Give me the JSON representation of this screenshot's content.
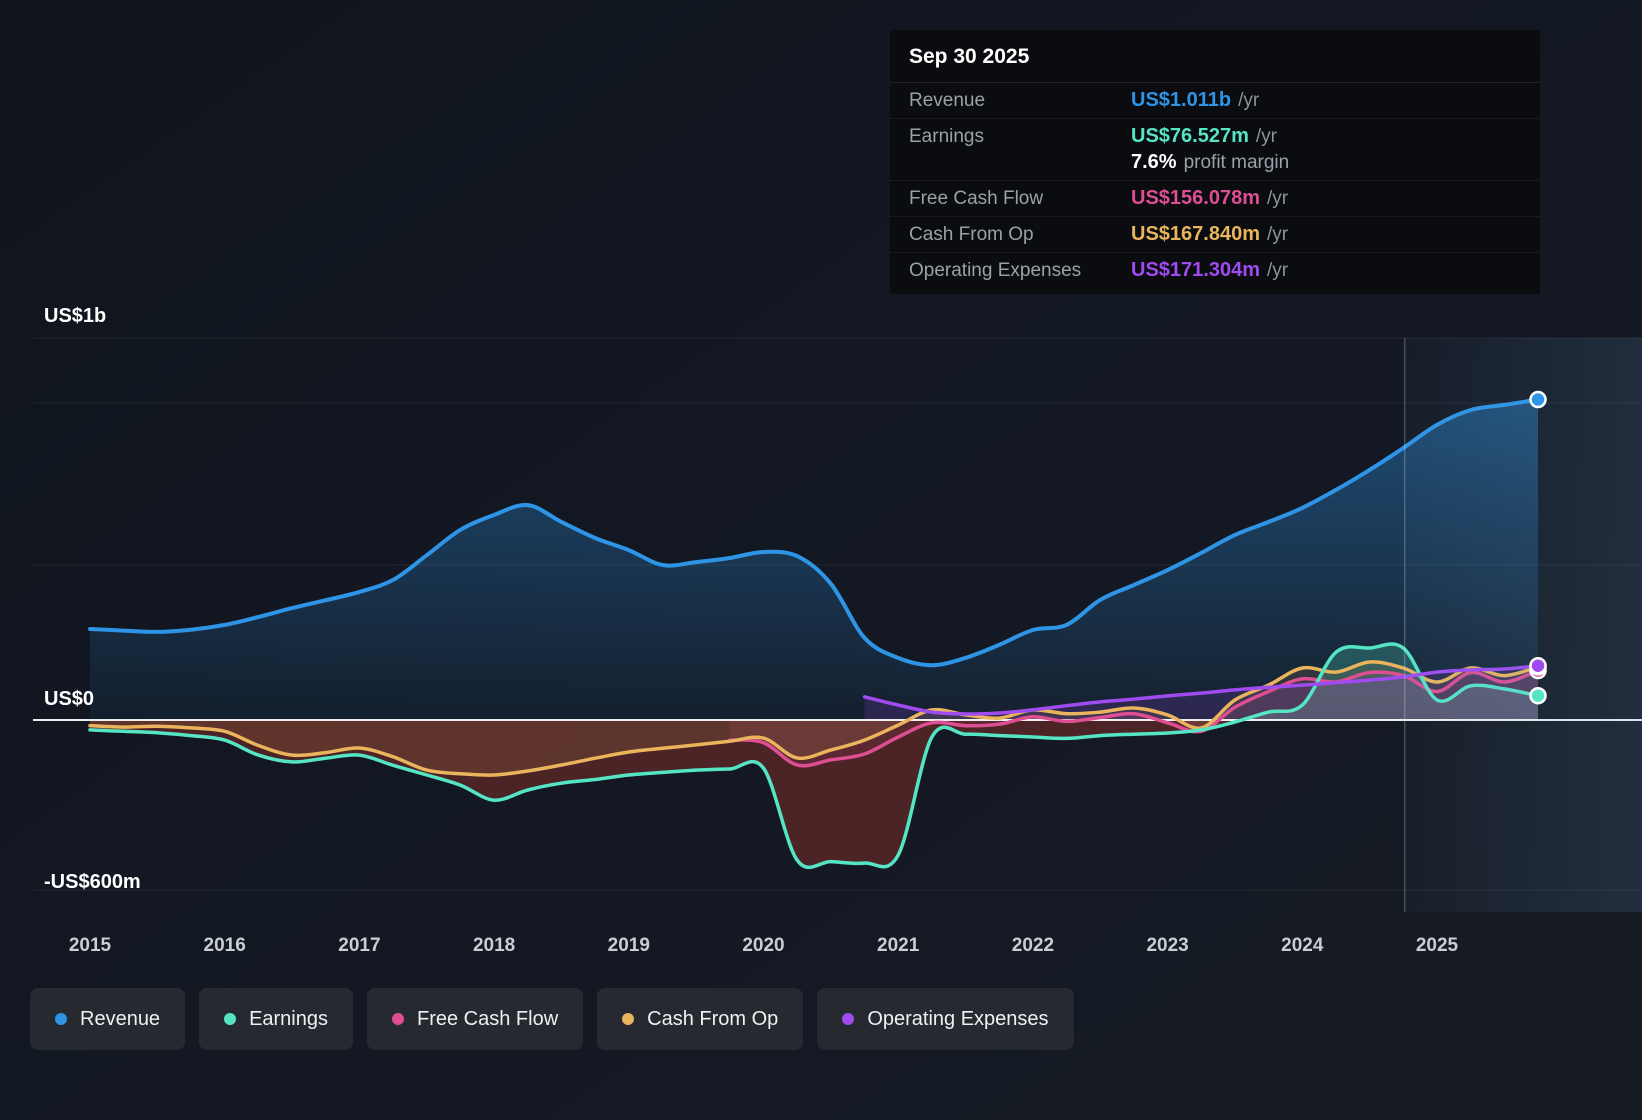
{
  "tooltip": {
    "date": "Sep 30 2025",
    "rows": [
      {
        "label": "Revenue",
        "value": "US$1.011b",
        "suffix": "/yr",
        "color": "#2e94e5"
      },
      {
        "label": "Earnings",
        "value": "US$76.527m",
        "suffix": "/yr",
        "color": "#55e5c5",
        "margin_value": "7.6%",
        "margin_text": "profit margin"
      },
      {
        "label": "Free Cash Flow",
        "value": "US$156.078m",
        "suffix": "/yr",
        "color": "#dd4f92"
      },
      {
        "label": "Cash From Op",
        "value": "US$167.840m",
        "suffix": "/yr",
        "color": "#e9b45c"
      },
      {
        "label": "Operating Expenses",
        "value": "US$171.304m",
        "suffix": "/yr",
        "color": "#9f4bf0"
      }
    ]
  },
  "axis": {
    "y_labels": [
      "US$1b",
      "US$0",
      "-US$600m"
    ],
    "x_ticks": [
      "2015",
      "2016",
      "2017",
      "2018",
      "2019",
      "2020",
      "2021",
      "2022",
      "2023",
      "2024",
      "2025"
    ]
  },
  "legend": [
    {
      "label": "Revenue",
      "color": "#2e94e5"
    },
    {
      "label": "Earnings",
      "color": "#55e5c5"
    },
    {
      "label": "Free Cash Flow",
      "color": "#dd4f92"
    },
    {
      "label": "Cash From Op",
      "color": "#e9b45c"
    },
    {
      "label": "Operating Expenses",
      "color": "#9f4bf0"
    }
  ],
  "chart_data": {
    "type": "line",
    "y_unit": "US$ millions",
    "ylim": [
      -600,
      1200
    ],
    "grid": "on",
    "legend_position": "bottom",
    "highlight_start_x": 2024.76,
    "x": [
      2015,
      2015.25,
      2015.5,
      2015.75,
      2016,
      2016.25,
      2016.5,
      2016.75,
      2017,
      2017.25,
      2017.5,
      2017.75,
      2018,
      2018.25,
      2018.5,
      2018.75,
      2019,
      2019.25,
      2019.5,
      2019.75,
      2020,
      2020.25,
      2020.5,
      2020.75,
      2021,
      2021.25,
      2021.5,
      2021.75,
      2022,
      2022.25,
      2022.5,
      2022.75,
      2023,
      2023.25,
      2023.5,
      2023.75,
      2024,
      2024.25,
      2024.5,
      2024.75,
      2025,
      2025.25,
      2025.5,
      2025.75
    ],
    "series": [
      {
        "name": "Revenue",
        "color": "#2e94e5",
        "values": [
          287,
          282,
          278,
          285,
          300,
          325,
          353,
          378,
          404,
          442,
          520,
          600,
          647,
          678,
          625,
          574,
          536,
          489,
          498,
          511,
          530,
          517,
          430,
          259,
          196,
          173,
          196,
          237,
          284,
          300,
          379,
          426,
          473,
          527,
          584,
          625,
          669,
          726,
          789,
          858,
          931,
          978,
          994,
          1011
        ]
      },
      {
        "name": "Earnings",
        "color": "#55e5c5",
        "values": [
          -35,
          -40,
          -45,
          -55,
          -71,
          -124,
          -148,
          -135,
          -124,
          -160,
          -194,
          -230,
          -283,
          -247,
          -223,
          -210,
          -194,
          -185,
          -177,
          -173,
          -170,
          -495,
          -500,
          -505,
          -477,
          -60,
          -50,
          -55,
          -60,
          -65,
          -55,
          -50,
          -46,
          -35,
          -7,
          25,
          47,
          214,
          227,
          227,
          63,
          108,
          98,
          76.527
        ]
      },
      {
        "name": "Free Cash Flow",
        "color": "#dd4f92",
        "values": [
          null,
          null,
          null,
          null,
          null,
          null,
          null,
          null,
          null,
          null,
          null,
          null,
          null,
          null,
          null,
          null,
          null,
          null,
          null,
          -71,
          -80,
          -159,
          -141,
          -120,
          -60,
          -10,
          -20,
          -15,
          10,
          -5,
          8,
          20,
          -10,
          -40,
          40,
          90,
          130,
          120,
          150,
          140,
          90,
          150,
          120,
          156.078
        ]
      },
      {
        "name": "Cash From Op",
        "color": "#e9b45c",
        "values": [
          -20,
          -25,
          -22,
          -28,
          -40,
          -90,
          -124,
          -115,
          -99,
          -130,
          -177,
          -190,
          -194,
          -180,
          -159,
          -135,
          -113,
          -100,
          -88,
          -75,
          -64,
          -134,
          -106,
          -71,
          -18,
          32,
          16,
          6,
          32,
          20,
          25,
          38,
          16,
          -28,
          63,
          110,
          164,
          151,
          183,
          164,
          120,
          164,
          140,
          167.84
        ]
      },
      {
        "name": "Operating Expenses",
        "color": "#9f4bf0",
        "values": [
          null,
          null,
          null,
          null,
          null,
          null,
          null,
          null,
          null,
          null,
          null,
          null,
          null,
          null,
          null,
          null,
          null,
          null,
          null,
          null,
          null,
          null,
          null,
          73,
          47,
          25,
          19,
          22,
          32,
          45,
          57,
          66,
          76,
          85,
          95,
          103,
          110,
          118,
          126,
          136,
          151,
          158,
          161,
          171.304
        ]
      }
    ]
  }
}
